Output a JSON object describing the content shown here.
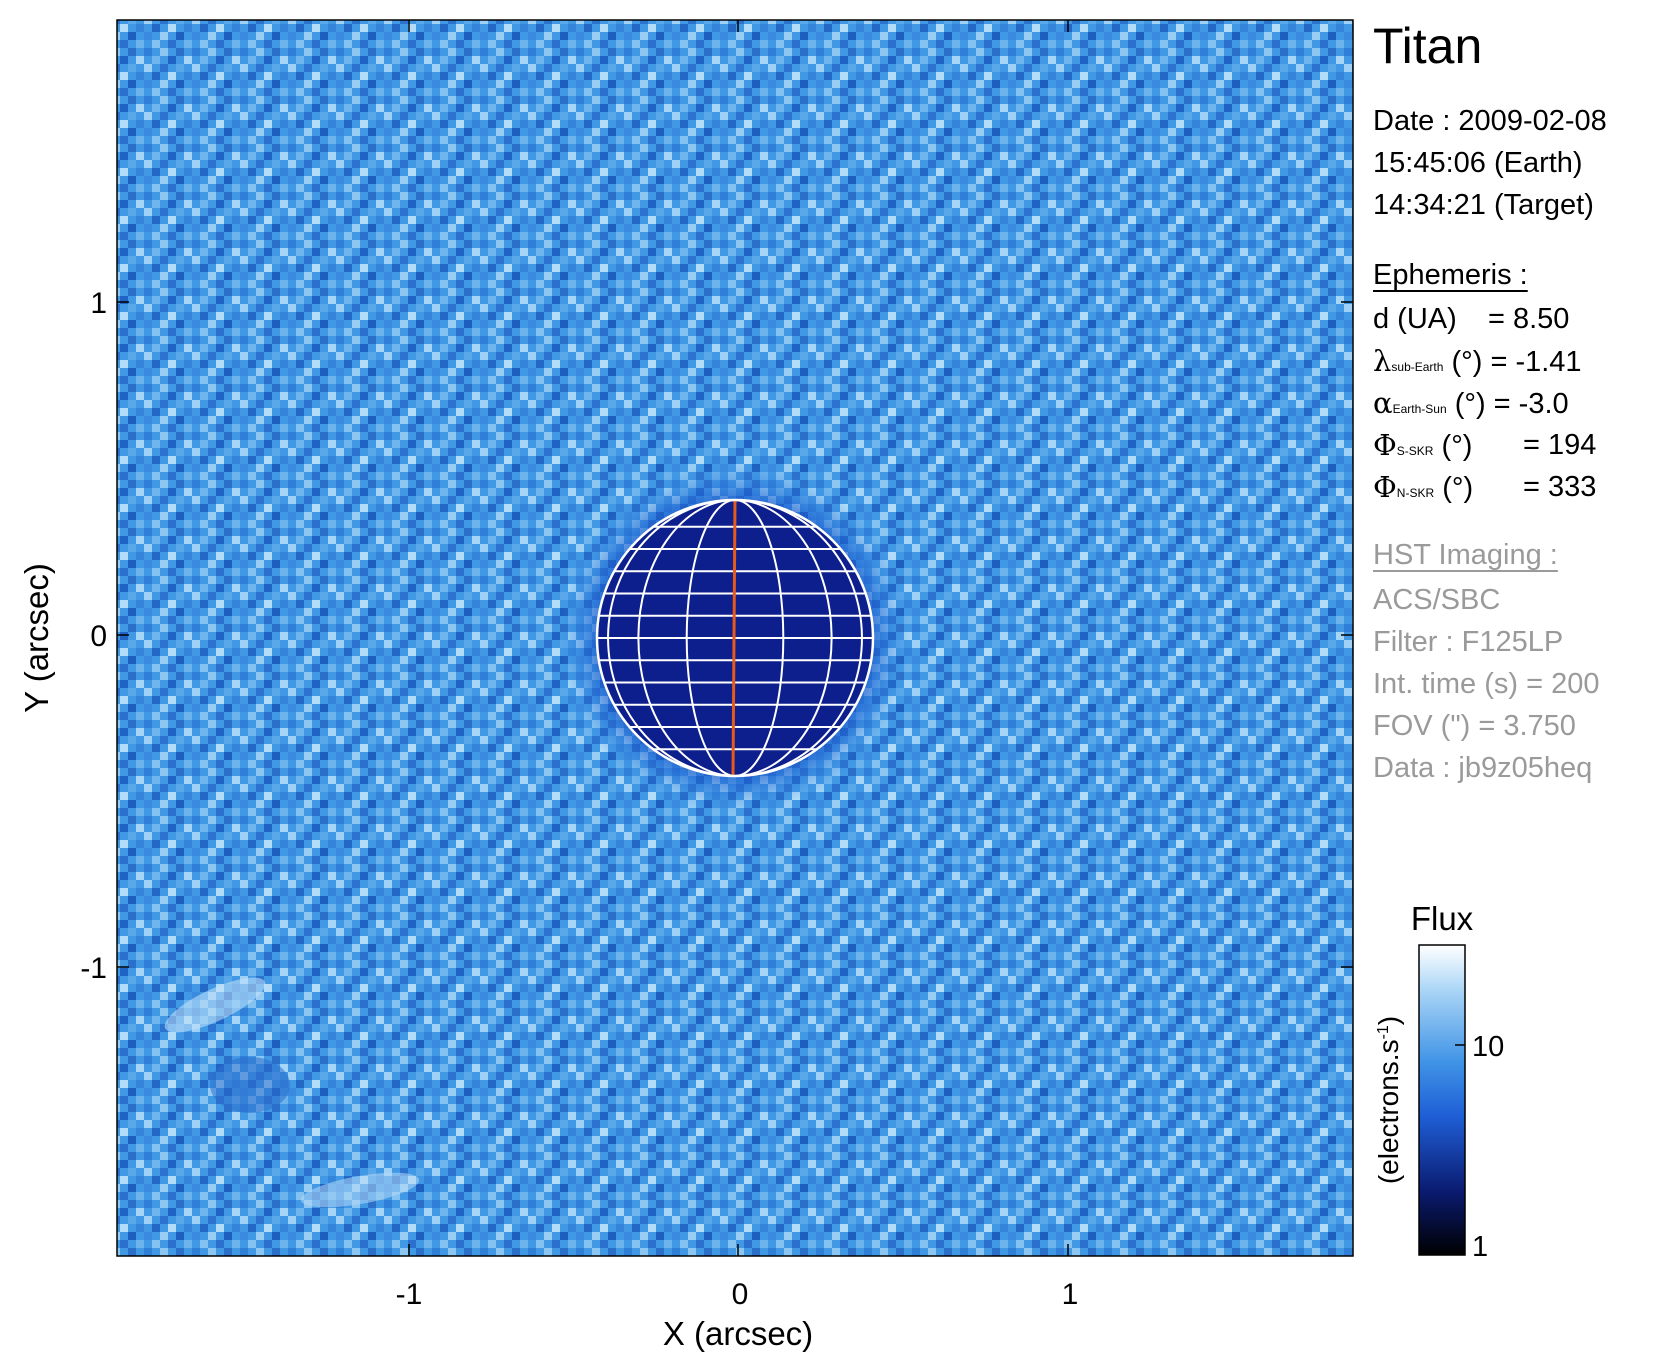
{
  "target": "Titan",
  "date_block": {
    "date": "Date : 2009-02-08",
    "earth_time": "15:45:06 (Earth)",
    "target_time": "14:34:21 (Target)"
  },
  "ephemeris": {
    "heading": "Ephemeris :",
    "distance": {
      "label": "d (UA)",
      "value": "= 8.50"
    },
    "sub_earth_lon": {
      "symbol": "λ",
      "sub": "sub-Earth",
      "unit": "(°)",
      "value": "= -1.41"
    },
    "earth_sun_angle": {
      "symbol": "α",
      "sub": "Earth-Sun",
      "unit": "(°)",
      "value": "= -3.0"
    },
    "s_skr_phase": {
      "symbol": "Φ",
      "sub": "S-SKR",
      "unit": "(°)",
      "value": "= 194"
    },
    "n_skr_phase": {
      "symbol": "Φ",
      "sub": "N-SKR",
      "unit": "(°)",
      "value": "= 333"
    }
  },
  "imaging": {
    "heading": "HST Imaging :",
    "instrument": "ACS/SBC",
    "filter": "Filter : F125LP",
    "int_time": "Int. time (s) = 200",
    "fov": "FOV (\") = 3.750",
    "data_id": "Data : jb9z05heq"
  },
  "colorbar": {
    "title": "Flux",
    "label": "(electrons.s",
    "label_sup": "-1",
    "label_end": ")",
    "ticks": [
      "1",
      "10"
    ],
    "scale": "log",
    "range": [
      1,
      30
    ],
    "colors": [
      "#000000",
      "#0a1a6e",
      "#1f5fd6",
      "#3f93e6",
      "#a8d4f6",
      "#ffffff"
    ]
  },
  "axes": {
    "xlabel": "X (arcsec)",
    "ylabel": "Y (arcsec)",
    "x_ticks": [
      "-1",
      "0",
      "1"
    ],
    "y_ticks": [
      "1",
      "0",
      "-1"
    ],
    "range": [
      -1.875,
      1.875
    ]
  },
  "image": {
    "background_color": "#3f93e6",
    "disk_color": "#0d1f8c",
    "grid_color": "#ffffff",
    "central_meridian_color": "#e85a1a"
  }
}
